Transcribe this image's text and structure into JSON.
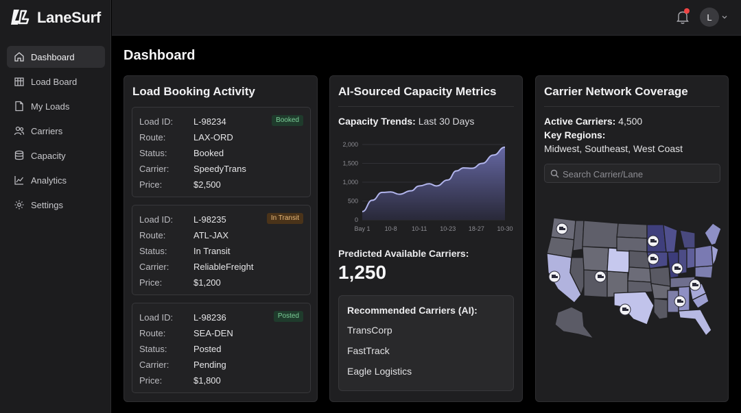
{
  "app": {
    "name": "LaneSurf",
    "user_initial": "L"
  },
  "sidebar": {
    "items": [
      {
        "label": "Dashboard",
        "icon": "home-icon",
        "active": true
      },
      {
        "label": "Load Board",
        "icon": "building-icon"
      },
      {
        "label": "My Loads",
        "icon": "document-icon"
      },
      {
        "label": "Carriers",
        "icon": "users-icon"
      },
      {
        "label": "Capacity",
        "icon": "database-icon"
      },
      {
        "label": "Analytics",
        "icon": "chart-line-icon"
      },
      {
        "label": "Settings",
        "icon": "gear-icon"
      }
    ]
  },
  "page": {
    "title": "Dashboard"
  },
  "booking": {
    "title": "Load Booking Activity",
    "field_labels": {
      "id": "Load ID:",
      "route": "Route:",
      "status": "Status:",
      "carrier": "Carrier:",
      "price": "Price:"
    },
    "loads": [
      {
        "id": "L-98234",
        "route": "LAX-ORD",
        "status": "Booked",
        "carrier": "SpeedyTrans",
        "price": "$2,500",
        "badge": "Booked",
        "badge_color": "#1f3b2c"
      },
      {
        "id": "L-98235",
        "route": "ATL-JAX",
        "status": "In Transit",
        "carrier": "ReliableFreight",
        "price": "$1,200",
        "badge": "In Transit",
        "badge_color": "#4a3319"
      },
      {
        "id": "L-98236",
        "route": "SEA-DEN",
        "status": "Posted",
        "carrier": "Pending",
        "price": "$1,800",
        "badge": "Posted",
        "badge_color": "#1f3b2c"
      }
    ]
  },
  "capacity": {
    "title": "AI-Sourced Capacity Metrics",
    "trend_label": "Capacity Trends:",
    "trend_period": "Last 30 Days",
    "predicted_label": "Predicted Available Carriers:",
    "predicted_value": "1,250",
    "recommended_title": "Recommended Carriers (AI):",
    "recommended": [
      "TransCorp",
      "FastTrack",
      "Eagle Logistics"
    ]
  },
  "chart_data": {
    "type": "area",
    "x": [
      "Bay 1",
      "10-8",
      "10-11",
      "10-23",
      "18-27",
      "10-30"
    ],
    "y_ticks": [
      "2,000",
      "1,500",
      "1,000",
      "500",
      "0"
    ],
    "ylim": [
      0,
      2000
    ],
    "points": [
      [
        0,
        220
      ],
      [
        0.35,
        520
      ],
      [
        0.7,
        730
      ],
      [
        1.0,
        740
      ],
      [
        1.3,
        680
      ],
      [
        1.7,
        770
      ],
      [
        2.0,
        900
      ],
      [
        2.35,
        960
      ],
      [
        2.6,
        900
      ],
      [
        3.0,
        1060
      ],
      [
        3.3,
        1300
      ],
      [
        3.55,
        1380
      ],
      [
        3.85,
        1370
      ],
      [
        4.2,
        1500
      ],
      [
        4.6,
        1720
      ],
      [
        5.0,
        1930
      ]
    ],
    "title": "",
    "xlabel": "",
    "ylabel": "",
    "colors": {
      "line": "#b3b6ee",
      "fill_top": "#6a6cab",
      "fill_bottom": "#2a2a3c"
    }
  },
  "network": {
    "title": "Carrier Network Coverage",
    "active_label": "Active Carriers:",
    "active_value": "4,500",
    "regions_label": "Key Regions:",
    "regions_value": "Midwest, Southeast, West Coast",
    "search_placeholder": "Search Carrier/Lane"
  }
}
